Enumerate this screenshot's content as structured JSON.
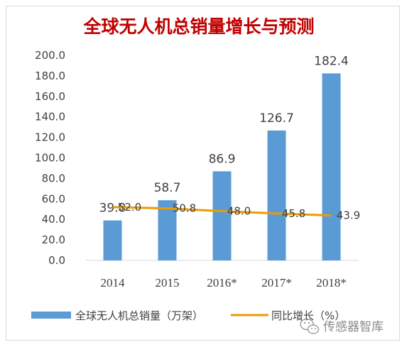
{
  "chart_data": {
    "type": "bar",
    "title": "全球无人机总销量增长与预测",
    "categories": [
      "2014",
      "2015",
      "2016*",
      "2017*",
      "2018*"
    ],
    "series": [
      {
        "name": "全球无人机总销量（万架）",
        "type": "bar",
        "values": [
          39.0,
          58.7,
          86.9,
          126.7,
          182.4
        ],
        "color": "#5b9bd5"
      },
      {
        "name": "同比增长（%）",
        "type": "line",
        "values": [
          52.0,
          50.8,
          48.0,
          45.8,
          43.9
        ],
        "color": "#ed9b00"
      }
    ],
    "bar_labels": [
      "39.0",
      "58.7",
      "86.9",
      "126.7",
      "182.4"
    ],
    "line_labels": [
      "52.0",
      "50.8",
      "48.0",
      "45.8",
      "43.9"
    ],
    "yticks": [
      "0.0",
      "20.0",
      "40.0",
      "60.0",
      "80.0",
      "100.0",
      "120.0",
      "140.0",
      "160.0",
      "180.0",
      "200.0"
    ],
    "ylim": [
      0,
      200
    ],
    "grid": false,
    "legend": "bottom"
  },
  "watermark": {
    "icon": "wechat-icon",
    "text": "传感器智库"
  }
}
